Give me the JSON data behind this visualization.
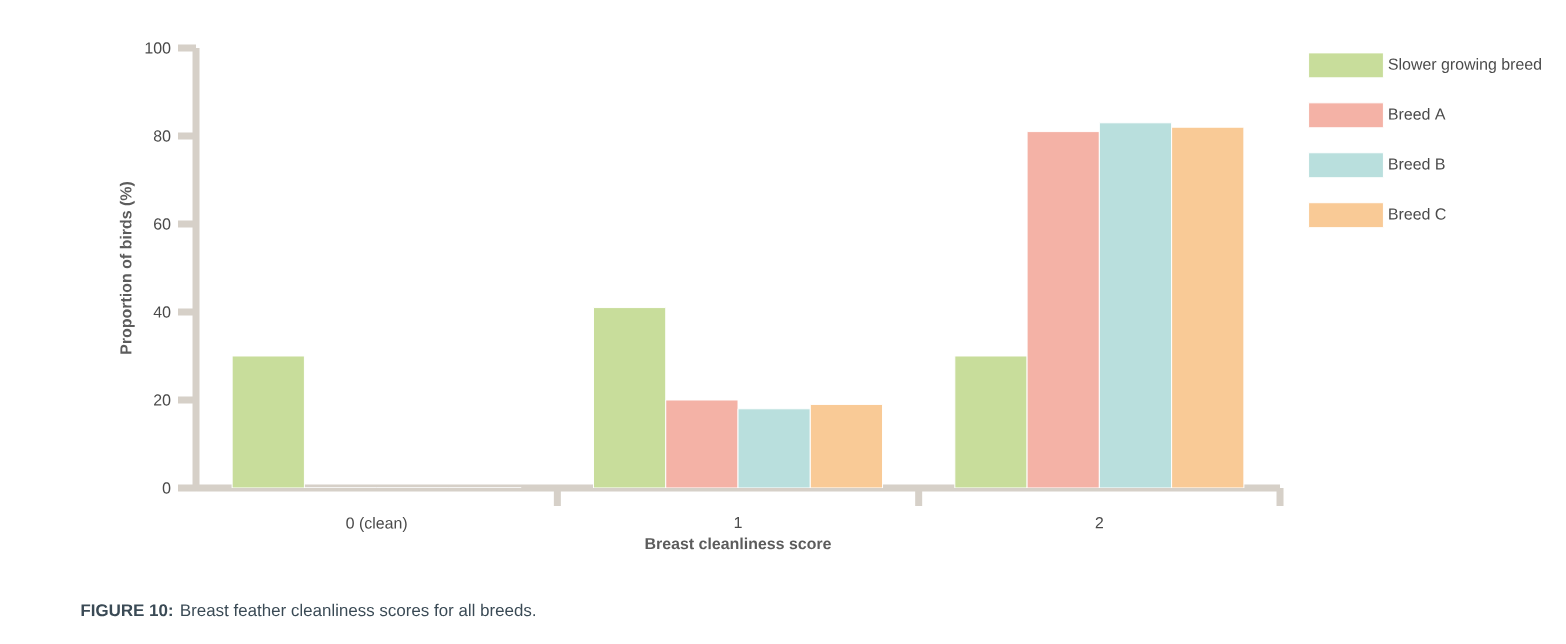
{
  "chart_data": {
    "type": "bar",
    "xlabel": "Breast cleanliness score",
    "ylabel": "Proportion of birds (%)",
    "categories": [
      "0 (clean)",
      "1",
      "2"
    ],
    "series": [
      {
        "name": "Slower growing breed",
        "color": "#c8dd9b",
        "values": [
          30,
          41,
          30
        ]
      },
      {
        "name": "Breed A",
        "color": "#f4b2a6",
        "values": [
          0,
          20,
          81
        ]
      },
      {
        "name": "Breed B",
        "color": "#b9dfdd",
        "values": [
          0,
          18,
          83
        ]
      },
      {
        "name": "Breed C",
        "color": "#f9ca96",
        "values": [
          0,
          19,
          82
        ]
      }
    ],
    "ylim": [
      0,
      100
    ],
    "yticks": [
      0,
      20,
      40,
      60,
      80,
      100
    ],
    "grid": false,
    "legend": "right",
    "annotations": [
      "**FIGURE 10:** Breast feather cleanliness scores for all breeds."
    ]
  }
}
